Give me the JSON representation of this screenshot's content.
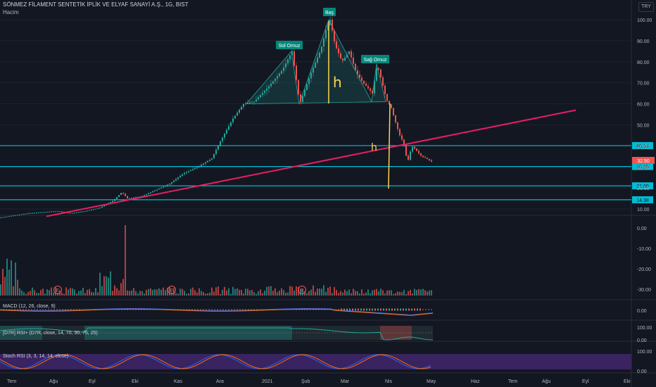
{
  "header": {
    "symbol_title": "SÖNMEZ FİLAMENT SENTETİK İPLİK VE ELYAF SANAYİ A.Ş., 1G, BIST",
    "volume_label": "Hacim",
    "currency": "TRY"
  },
  "annotations": {
    "head": "Baş",
    "left_shoulder": "Sol Omuz",
    "right_shoulder": "Sağ Omuz",
    "h_big": "h",
    "h_small": "h"
  },
  "price_axis": {
    "ticks": [
      "100.00",
      "90.00",
      "80.00",
      "70.00",
      "60.00",
      "50.00",
      "40.00",
      "30.00",
      "20.00",
      "10.00"
    ],
    "current_price": "32.50",
    "levels": [
      {
        "value": 40.14,
        "label": "40.14"
      },
      {
        "value": 30.2,
        "label": "30.20"
      },
      {
        "value": 21.0,
        "label": "21.00"
      },
      {
        "value": 14.38,
        "label": "14.38"
      }
    ]
  },
  "volume_axis": {
    "ticks": [
      "0.00",
      "-10.00",
      "-20.00",
      "-30.00"
    ]
  },
  "indicators": {
    "macd": {
      "label": "MACD (12, 26, close, 9)",
      "ticks": [
        "0.00"
      ]
    },
    "rsi": {
      "label": "[D7R] RSI+ (D7R, close, 14, 70, 30, 75, 25)",
      "ticks": [
        "100.00",
        "0.00"
      ]
    },
    "stoch": {
      "label": "Stoch RSI (3, 3, 14, 14, close)",
      "ticks": [
        "100.00",
        "0.00"
      ]
    }
  },
  "time_axis": {
    "labels": [
      "Tem",
      "Ağu",
      "Eyl",
      "Eki",
      "Kas",
      "Ara",
      "2021",
      "Şub",
      "Mar",
      "Nis",
      "May",
      "Haz",
      "Tem",
      "Ağu",
      "Eyl",
      "Eki"
    ]
  },
  "events": [
    "E",
    "E",
    "E"
  ],
  "colors": {
    "background": "#131722",
    "up": "#26a69a",
    "down": "#ef5350",
    "level_line": "#00bcd4",
    "trendline": "#e91e63",
    "annotation_box": "#00897b",
    "head_line": "#ffd54f",
    "stoch_bg": "#4a2a7a"
  },
  "chart_data": {
    "type": "candlestick",
    "price_path": [
      [
        0,
        6
      ],
      [
        20,
        7
      ],
      [
        40,
        8
      ],
      [
        60,
        8.5
      ],
      [
        80,
        9
      ],
      [
        100,
        8
      ],
      [
        120,
        9
      ],
      [
        140,
        10.5
      ],
      [
        160,
        14
      ],
      [
        172,
        18
      ],
      [
        180,
        15
      ],
      [
        200,
        16
      ],
      [
        220,
        19
      ],
      [
        240,
        22
      ],
      [
        260,
        27
      ],
      [
        280,
        30
      ],
      [
        300,
        34
      ],
      [
        310,
        41
      ],
      [
        320,
        47
      ],
      [
        330,
        53
      ],
      [
        345,
        60
      ],
      [
        360,
        61
      ],
      [
        380,
        68
      ],
      [
        400,
        76
      ],
      [
        414,
        85
      ],
      [
        425,
        60
      ],
      [
        440,
        74
      ],
      [
        455,
        86
      ],
      [
        462,
        95
      ],
      [
        468,
        100
      ],
      [
        475,
        88
      ],
      [
        485,
        80
      ],
      [
        495,
        85
      ],
      [
        505,
        75
      ],
      [
        515,
        70
      ],
      [
        528,
        65
      ],
      [
        535,
        79
      ],
      [
        542,
        70
      ],
      [
        548,
        62
      ],
      [
        555,
        58
      ],
      [
        562,
        50
      ],
      [
        568,
        44
      ],
      [
        572,
        42
      ],
      [
        578,
        32
      ],
      [
        584,
        40
      ],
      [
        590,
        38
      ],
      [
        598,
        35
      ],
      [
        605,
        34
      ],
      [
        612,
        32.5
      ]
    ],
    "head_shoulders": {
      "left_shoulder": 85,
      "head": 100,
      "right_shoulder": 79,
      "neckline": 60
    },
    "levels": [
      40.14,
      30.2,
      21.0,
      14.38
    ],
    "trendline": {
      "from_price": 6.5,
      "to_price": 57
    }
  }
}
